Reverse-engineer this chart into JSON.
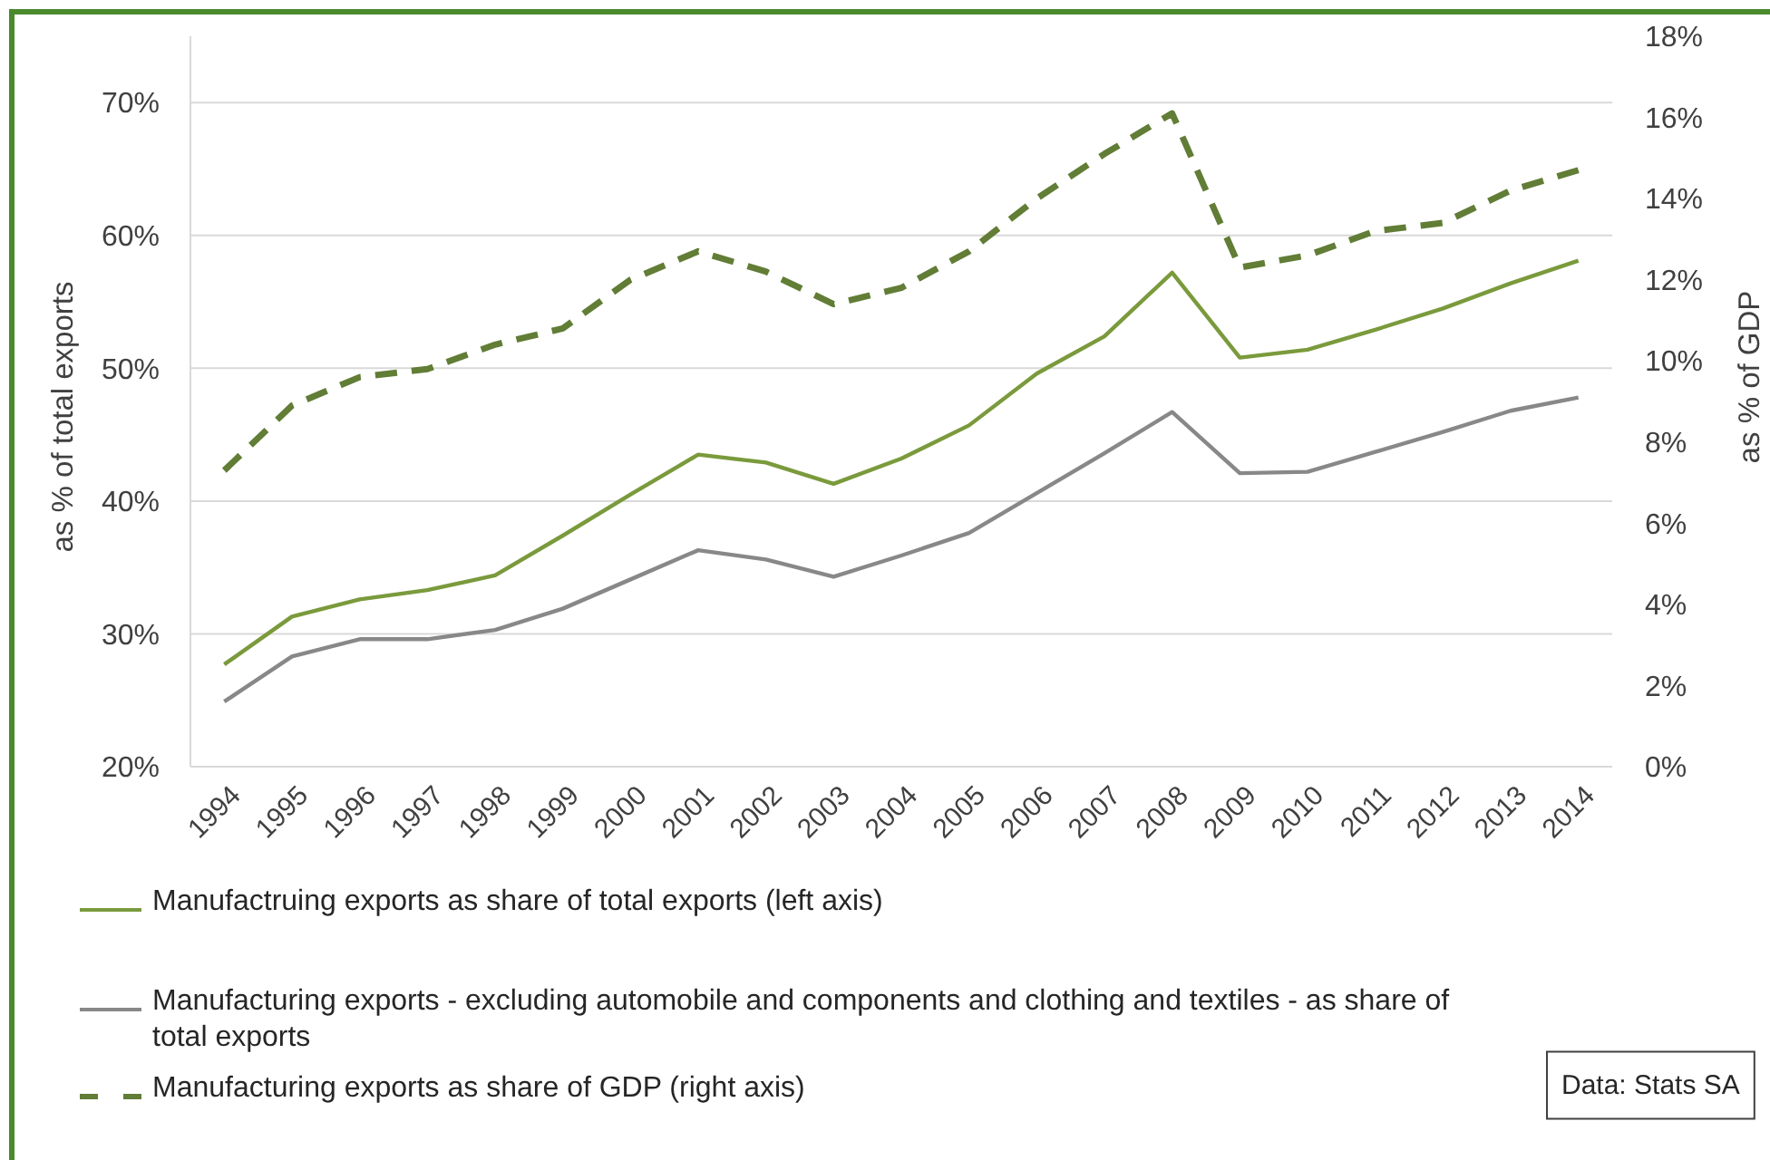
{
  "chart_data": {
    "type": "line",
    "categories": [
      "1994",
      "1995",
      "1996",
      "1997",
      "1998",
      "1999",
      "2000",
      "2001",
      "2002",
      "2003",
      "2004",
      "2005",
      "2006",
      "2007",
      "2008",
      "2009",
      "2010",
      "2011",
      "2012",
      "2013",
      "2014"
    ],
    "series": [
      {
        "name": "Manufactruing exports as share of total exports (left axis)",
        "color": "#7a9a3c",
        "values": [
          27.7,
          31.3,
          32.6,
          33.3,
          34.4,
          37.4,
          40.5,
          43.5,
          42.9,
          41.3,
          43.2,
          45.7,
          49.6,
          52.4,
          57.2,
          50.8,
          51.4,
          52.9,
          54.5,
          56.4,
          58.1
        ]
      },
      {
        "name": "Manufacturing exports - excluding automobile and components and clothing and textiles - as share of total exports",
        "color": "#888888",
        "values": [
          24.9,
          28.3,
          29.6,
          29.6,
          30.3,
          31.9,
          34.1,
          36.3,
          35.6,
          34.3,
          35.9,
          37.6,
          40.6,
          43.6,
          46.7,
          42.1,
          42.2,
          43.7,
          45.2,
          46.8,
          47.8
        ]
      },
      {
        "name": "Manufacturing exports as share of GDP (right axis)",
        "color": "#617d36",
        "axis": "y2",
        "line_style": "dashed",
        "values": [
          7.3,
          8.9,
          9.6,
          9.8,
          10.4,
          10.8,
          12.0,
          12.7,
          12.2,
          11.4,
          11.8,
          12.7,
          14.0,
          15.1,
          16.1,
          12.3,
          12.6,
          13.2,
          13.4,
          14.2,
          14.7
        ]
      }
    ],
    "ylabel": "as % of total exports",
    "y2label": "as % of GDP",
    "ylim": [
      20,
      75
    ],
    "yticks": [
      {
        "value": 20,
        "label": "20%"
      },
      {
        "value": 30,
        "label": "30%"
      },
      {
        "value": 40,
        "label": "40%"
      },
      {
        "value": 50,
        "label": "50%"
      },
      {
        "value": 60,
        "label": "60%"
      },
      {
        "value": 70,
        "label": "70%"
      }
    ],
    "y2lim": [
      0,
      18
    ],
    "y2ticks": [
      {
        "value": 0,
        "label": "0%"
      },
      {
        "value": 2,
        "label": "2%"
      },
      {
        "value": 4,
        "label": "4%"
      },
      {
        "value": 6,
        "label": "6%"
      },
      {
        "value": 8,
        "label": "8%"
      },
      {
        "value": 10,
        "label": "10%"
      },
      {
        "value": 12,
        "label": "12%"
      },
      {
        "value": 14,
        "label": "14%"
      },
      {
        "value": 16,
        "label": "16%"
      },
      {
        "value": 18,
        "label": "18%"
      }
    ],
    "grid": "y",
    "legend": "bottom",
    "marker": "none",
    "annotations": [
      "Data: Stats SA"
    ]
  }
}
